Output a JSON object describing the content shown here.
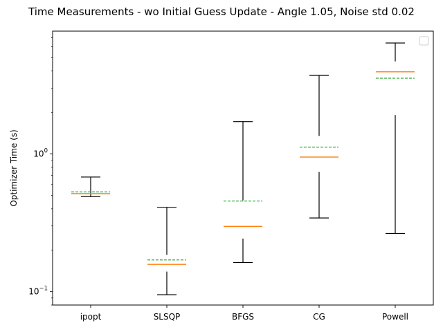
{
  "chart_data": {
    "type": "box",
    "title": "Time Measurements - wo Initial Guess Update - Angle 1.05, Noise std 0.02",
    "xlabel": "",
    "ylabel": "Optimizer Time (s)",
    "yscale": "log",
    "ylim": [
      0.08,
      7.8
    ],
    "yticks": [
      {
        "value": 0.1,
        "base": "10",
        "exp": "−1"
      },
      {
        "value": 1,
        "base": "10",
        "exp": "0"
      }
    ],
    "categories": [
      "ipopt",
      "SLSQP",
      "BFGS",
      "CG",
      "Powell"
    ],
    "boxes": [
      {
        "whisker_low": 0.49,
        "whisker_high": 0.68,
        "median": 0.515,
        "mean": 0.53
      },
      {
        "whisker_low": 0.095,
        "whisker_high": 0.41,
        "box_low": 0.14,
        "box_high": 0.185,
        "median": 0.158,
        "mean": 0.17
      },
      {
        "whisker_low": 0.163,
        "whisker_high": 1.72,
        "box_low": 0.243,
        "box_high": 0.46,
        "median": 0.298,
        "mean": 0.455
      },
      {
        "whisker_low": 0.343,
        "whisker_high": 3.72,
        "box_low": 0.74,
        "box_high": 1.35,
        "median": 0.95,
        "mean": 1.12
      },
      {
        "whisker_low": 0.265,
        "whisker_high": 6.4,
        "box_low": 1.92,
        "box_high": 4.7,
        "median": 3.95,
        "mean": 3.55
      }
    ],
    "colors": {
      "median": "#ff7f0e",
      "mean": "#2ca02c",
      "whisker": "#000000"
    },
    "legend_placement": "top-right",
    "grid": false
  }
}
